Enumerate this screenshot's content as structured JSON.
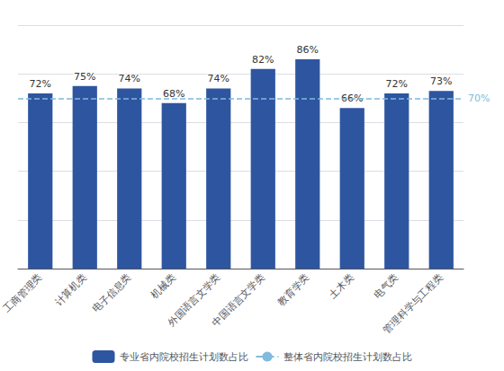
{
  "chart_data": {
    "type": "bar",
    "categories": [
      "工商管理类",
      "计算机类",
      "电子信息类",
      "机械类",
      "外国语言文学类",
      "中国语言文学类",
      "教育学类",
      "土木类",
      "电气类",
      "管理科学与工程类"
    ],
    "series": [
      {
        "name": "专业省内院校招生计划数占比",
        "color": "#2E55A0",
        "values": [
          72,
          75,
          74,
          68,
          74,
          82,
          86,
          66,
          72,
          73
        ],
        "value_labels": [
          "72%",
          "75%",
          "74%",
          "68%",
          "74%",
          "82%",
          "86%",
          "66%",
          "72%",
          "73%"
        ]
      }
    ],
    "reference_line": {
      "name": "整体省内院校招生计划数占比",
      "value": 70,
      "label": "70%",
      "color": "#7FBBDD",
      "line_style": "dashed"
    },
    "ylim": [
      0,
      100
    ],
    "yticks": [
      20,
      40,
      60,
      80,
      100
    ],
    "grid": true,
    "legend": "bottom",
    "data_labels": true,
    "tick_labels": "x"
  }
}
